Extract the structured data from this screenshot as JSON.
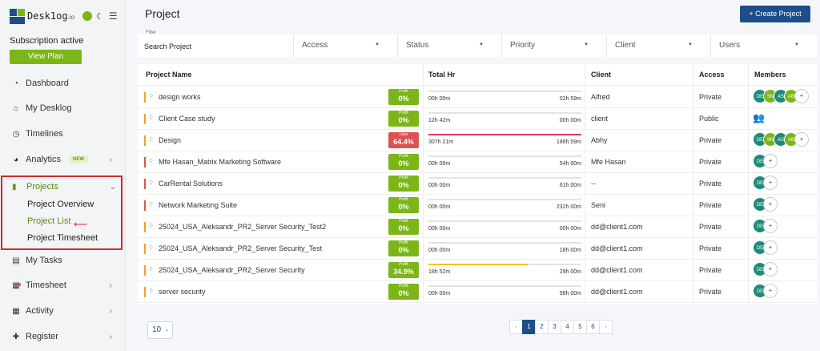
{
  "brand": {
    "name": "Desk1og",
    "suffix": ".io"
  },
  "subscription": {
    "status": "Subscription active",
    "button": "View Plan"
  },
  "nav": {
    "dashboard": "Dashboard",
    "my_desklog": "My Desklog",
    "timelines": "Timelines",
    "analytics": "Analytics",
    "analytics_badge": "NEW",
    "projects": "Projects",
    "project_overview": "Project Overview",
    "project_list": "Project List",
    "project_timesheet": "Project Timesheet",
    "my_tasks": "My Tasks",
    "timesheet": "Timesheet",
    "activity": "Activity",
    "register": "Register"
  },
  "page": {
    "title": "Project",
    "create_button": "+ Create Project"
  },
  "filters": {
    "search_caption": "Filter",
    "search_value": "Search Project",
    "dropdowns": [
      "Access",
      "Status",
      "Priority",
      "Client",
      "Users"
    ]
  },
  "table": {
    "columns": [
      "Project Name",
      "Total Hr",
      "Client",
      "Access",
      "Members"
    ],
    "rows": [
      {
        "name": "design works",
        "accent": "#f0a030",
        "badge_label": "Profit",
        "badge_value": "0%",
        "badge_color": "#7cb518",
        "hr_start": "00h 00m",
        "hr_end": "02h 59m",
        "progress": 0,
        "progress_color": "#7cb518",
        "client": "Alfred",
        "access": "Private",
        "members": [
          "DE",
          "SN",
          "AS",
          "AB"
        ],
        "plus": true
      },
      {
        "name": "Client Case study",
        "accent": "#f0a030",
        "badge_label": "Profit",
        "badge_value": "0%",
        "badge_color": "#7cb518",
        "hr_start": "12h 42m",
        "hr_end": "00h 00m",
        "progress": 0,
        "progress_color": "#7cb518",
        "client": "client",
        "access": "Public",
        "members": [],
        "plus": false,
        "group": true
      },
      {
        "name": "Design",
        "accent": "#f0a030",
        "badge_label": "Loss",
        "badge_value": "64.4%",
        "badge_color": "#d9534f",
        "hr_start": "307h 21m",
        "hr_end": "186h 59m",
        "progress": 1,
        "progress_color": "#d93a5a",
        "client": "Abhy",
        "access": "Private",
        "members": [
          "DE",
          "SN",
          "AS",
          "AB"
        ],
        "plus": true
      },
      {
        "name": "Mfe Hasan_Matrix Marketing Software",
        "accent": "#d9534f",
        "badge_label": "Profit",
        "badge_value": "0%",
        "badge_color": "#7cb518",
        "hr_start": "00h 00m",
        "hr_end": "54h 00m",
        "progress": 0,
        "progress_color": "#7cb518",
        "client": "Mfe Hasan",
        "access": "Private",
        "members": [
          "DE"
        ],
        "plus": true
      },
      {
        "name": "CarRental Solutions",
        "accent": "#d9534f",
        "badge_label": "Profit",
        "badge_value": "0%",
        "badge_color": "#7cb518",
        "hr_start": "00h 00m",
        "hr_end": "61h 00m",
        "progress": 0,
        "progress_color": "#7cb518",
        "client": "--",
        "access": "Private",
        "members": [
          "DE"
        ],
        "plus": true
      },
      {
        "name": "Network Marketing Suite",
        "accent": "#d9534f",
        "badge_label": "Profit",
        "badge_value": "0%",
        "badge_color": "#7cb518",
        "hr_start": "00h 00m",
        "hr_end": "232h 00m",
        "progress": 0,
        "progress_color": "#7cb518",
        "client": "Seni",
        "access": "Private",
        "members": [
          "DE"
        ],
        "plus": true
      },
      {
        "name": "25024_USA_Aleksandr_PR2_Server Security_Test2",
        "accent": "#f0a030",
        "badge_label": "Profit",
        "badge_value": "0%",
        "badge_color": "#7cb518",
        "hr_start": "00h 00m",
        "hr_end": "00h 00m",
        "progress": 0,
        "progress_color": "#7cb518",
        "client": "dd@client1.com",
        "access": "Private",
        "members": [
          "DE"
        ],
        "plus": true
      },
      {
        "name": "25024_USA_Aleksandr_PR2_Server Security_Test",
        "accent": "#f0a030",
        "badge_label": "Profit",
        "badge_value": "0%",
        "badge_color": "#7cb518",
        "hr_start": "00h 00m",
        "hr_end": "18h 00m",
        "progress": 0,
        "progress_color": "#7cb518",
        "client": "dd@client1.com",
        "access": "Private",
        "members": [
          "DE"
        ],
        "plus": true
      },
      {
        "name": "25024_USA_Aleksandr_PR2_Server Security",
        "accent": "#f0a030",
        "badge_label": "Profit",
        "badge_value": "34.9%",
        "badge_color": "#7cb518",
        "hr_start": "18h 52m",
        "hr_end": "29h 00m",
        "progress": 0.65,
        "progress_color": "#f2c31a",
        "client": "dd@client1.com",
        "access": "Private",
        "members": [
          "DE"
        ],
        "plus": true
      },
      {
        "name": "server security",
        "accent": "#f0a030",
        "badge_label": "Profit",
        "badge_value": "0%",
        "badge_color": "#7cb518",
        "hr_start": "00h 00m",
        "hr_end": "58h 00m",
        "progress": 0,
        "progress_color": "#7cb518",
        "client": "dd@client1.com",
        "access": "Private",
        "members": [
          "DE"
        ],
        "plus": true
      }
    ]
  },
  "member_colors": {
    "DE": "#1f8a78",
    "SN": "#7cb518",
    "AS": "#1f8a78",
    "AB": "#7cb518"
  },
  "pagination": {
    "page_size": "10",
    "prev": "‹",
    "pages": [
      "1",
      "2",
      "3",
      "4",
      "5",
      "6"
    ],
    "next": "›",
    "current": "1"
  }
}
